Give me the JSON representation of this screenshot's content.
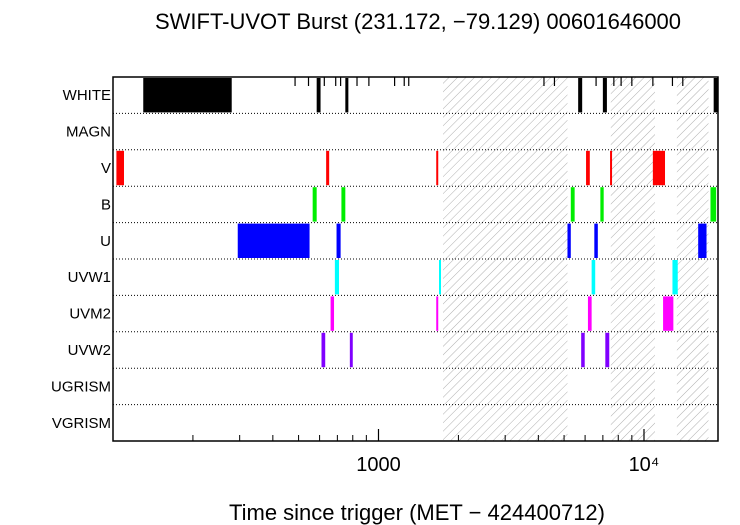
{
  "chart_data": {
    "type": "timeline",
    "title": "SWIFT-UVOT Burst (231.172, −79.129) 00601646000",
    "xlabel": "Time since trigger (MET − 424400712)",
    "x_scale": "log",
    "xlim": [
      100,
      19000
    ],
    "x_ticks": [
      {
        "value": 1000,
        "label": "1000"
      },
      {
        "value": 10000,
        "label": "10⁴"
      }
    ],
    "rows": [
      {
        "name": "WHITE",
        "color": "#000000",
        "segments": [
          [
            130,
            280
          ],
          [
            585,
            605
          ],
          [
            750,
            770
          ],
          [
            5650,
            5850
          ],
          [
            7000,
            7250
          ],
          [
            18300,
            19000
          ]
        ]
      },
      {
        "name": "MAGN",
        "color": "#000000",
        "segments": []
      },
      {
        "name": "V",
        "color": "#ff0000",
        "segments": [
          [
            103,
            110
          ],
          [
            635,
            652
          ],
          [
            1650,
            1670
          ],
          [
            6050,
            6250
          ],
          [
            7450,
            7560
          ],
          [
            10800,
            12000
          ]
        ]
      },
      {
        "name": "B",
        "color": "#00ee00",
        "segments": [
          [
            565,
            585
          ],
          [
            725,
            750
          ],
          [
            5300,
            5480
          ],
          [
            6850,
            7050
          ],
          [
            17800,
            18700
          ]
        ]
      },
      {
        "name": "U",
        "color": "#0000ff",
        "segments": [
          [
            295,
            550
          ],
          [
            695,
            720
          ],
          [
            5150,
            5300
          ],
          [
            6500,
            6700
          ],
          [
            16000,
            17200
          ]
        ]
      },
      {
        "name": "UVW1",
        "color": "#00ffff",
        "segments": [
          [
            685,
            710
          ],
          [
            1690,
            1710
          ],
          [
            6350,
            6550
          ],
          [
            12800,
            13400
          ]
        ]
      },
      {
        "name": "UVM2",
        "color": "#ff00ff",
        "segments": [
          [
            660,
            680
          ],
          [
            1650,
            1670
          ],
          [
            6150,
            6350
          ],
          [
            11800,
            12900
          ]
        ]
      },
      {
        "name": "UVW2",
        "color": "#8000ff",
        "segments": [
          [
            610,
            630
          ],
          [
            780,
            800
          ],
          [
            5800,
            5980
          ],
          [
            7150,
            7400
          ]
        ]
      },
      {
        "name": "UGRISM",
        "color": "#000000",
        "segments": []
      },
      {
        "name": "VGRISM",
        "color": "#000000",
        "segments": []
      }
    ],
    "white_ticks": [
      485,
      545,
      625,
      690,
      720,
      830,
      920,
      1150,
      1250,
      1300,
      4200,
      4600,
      6600,
      7700,
      8200,
      9000,
      10800,
      12800,
      14000
    ],
    "hatched_intervals": [
      [
        1750,
        5150
      ],
      [
        7500,
        11000
      ],
      [
        13300,
        17500
      ]
    ],
    "grid": "dotted row separators",
    "legend": "none"
  }
}
